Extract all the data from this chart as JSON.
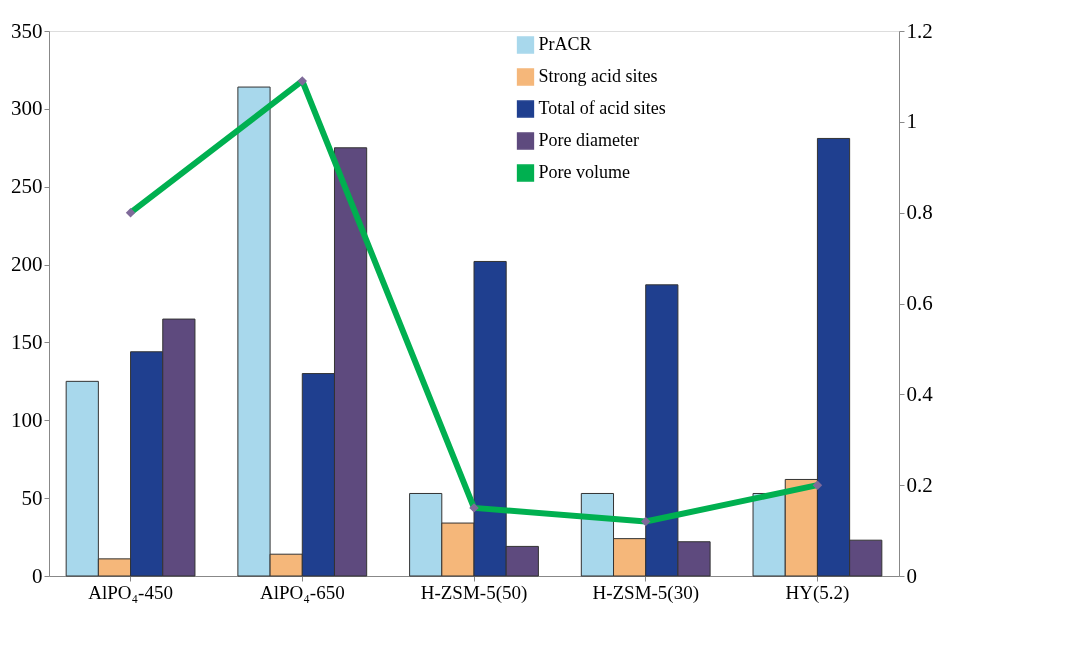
{
  "chart_data": {
    "type": "bar",
    "categories": [
      "AlPO₄-450",
      "AlPO₄-650",
      "H-ZSM-5(50)",
      "H-ZSM-5(30)",
      "HY(5.2)"
    ],
    "series": [
      {
        "name": "PrACR",
        "color": "#a8d8ec",
        "values": [
          125,
          314,
          53,
          53,
          53
        ]
      },
      {
        "name": "Strong acid sites",
        "color": "#f5b77a",
        "values": [
          11,
          14,
          34,
          24,
          62
        ]
      },
      {
        "name": "Total of acid sites",
        "color": "#1f3f8f",
        "values": [
          144,
          130,
          202,
          187,
          281
        ]
      },
      {
        "name": "Pore diameter",
        "color": "#5e4a7e",
        "values": [
          165,
          275,
          19,
          22,
          23
        ]
      },
      {
        "name": "Pore volume",
        "type": "line",
        "axis": "y2",
        "color": "#00b050",
        "marker": "diamond",
        "values": [
          0.8,
          1.09,
          0.15,
          0.12,
          0.2
        ]
      }
    ],
    "ylim": [
      0,
      350
    ],
    "yticks": [
      0,
      50,
      100,
      150,
      200,
      250,
      300,
      350
    ],
    "y2lim": [
      0,
      1.2
    ],
    "y2ticks": [
      0,
      0.2,
      0.4,
      0.6,
      0.8,
      1,
      1.2
    ],
    "legend": "top right",
    "grid": false
  }
}
